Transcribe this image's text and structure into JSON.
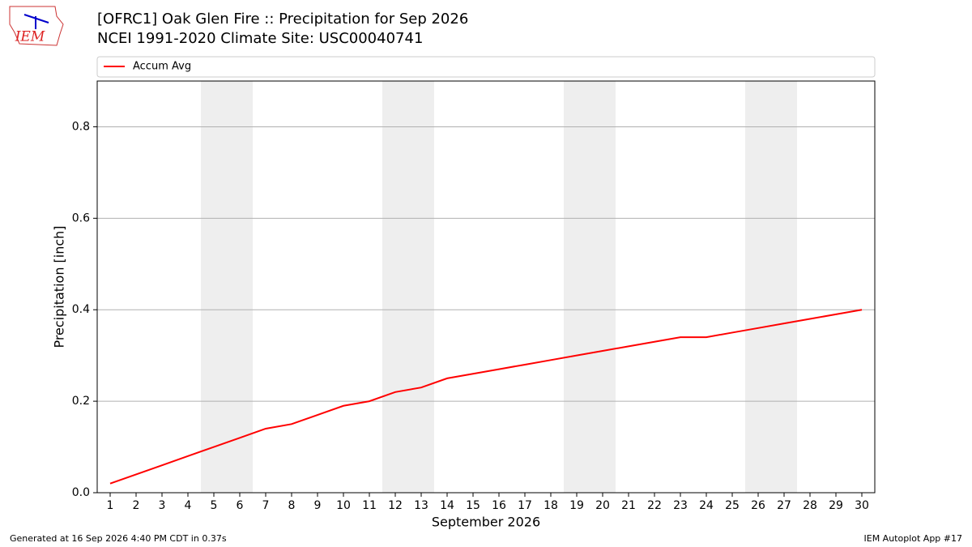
{
  "logo": "IEM",
  "chart_data": {
    "type": "line",
    "title": "[OFRC1] Oak Glen Fire :: Precipitation for Sep 2026",
    "subtitle": "NCEI 1991-2020 Climate Site: USC00040741",
    "xlabel": "September 2026",
    "ylabel": "Precipitation [inch]",
    "x": [
      1,
      2,
      3,
      4,
      5,
      6,
      7,
      8,
      9,
      10,
      11,
      12,
      13,
      14,
      15,
      16,
      17,
      18,
      19,
      20,
      21,
      22,
      23,
      24,
      25,
      26,
      27,
      28,
      29,
      30
    ],
    "series": [
      {
        "name": "Accum Avg",
        "color": "#ff0000",
        "values": [
          0.02,
          0.04,
          0.06,
          0.08,
          0.1,
          0.12,
          0.14,
          0.15,
          0.17,
          0.19,
          0.2,
          0.22,
          0.23,
          0.25,
          0.26,
          0.27,
          0.28,
          0.29,
          0.3,
          0.31,
          0.32,
          0.33,
          0.34,
          0.34,
          0.35,
          0.36,
          0.37,
          0.38,
          0.39,
          0.4
        ]
      }
    ],
    "shaded_days": [
      5,
      6,
      12,
      13,
      19,
      20,
      26,
      27
    ],
    "shade_color": "#eeeeee",
    "xlim": [
      0.5,
      30.5
    ],
    "ylim": [
      0,
      0.9
    ],
    "xticks": [
      1,
      2,
      3,
      4,
      5,
      6,
      7,
      8,
      9,
      10,
      11,
      12,
      13,
      14,
      15,
      16,
      17,
      18,
      19,
      20,
      21,
      22,
      23,
      24,
      25,
      26,
      27,
      28,
      29,
      30
    ],
    "yticks": [
      {
        "value": 0,
        "label": "0.0"
      },
      0.2,
      0.4,
      0.6,
      0.8
    ],
    "grid": true,
    "legend": "top"
  },
  "footer": {
    "left": "Generated at 16 Sep 2026 4:40 PM CDT in 0.37s",
    "right": "IEM Autoplot App #17"
  }
}
